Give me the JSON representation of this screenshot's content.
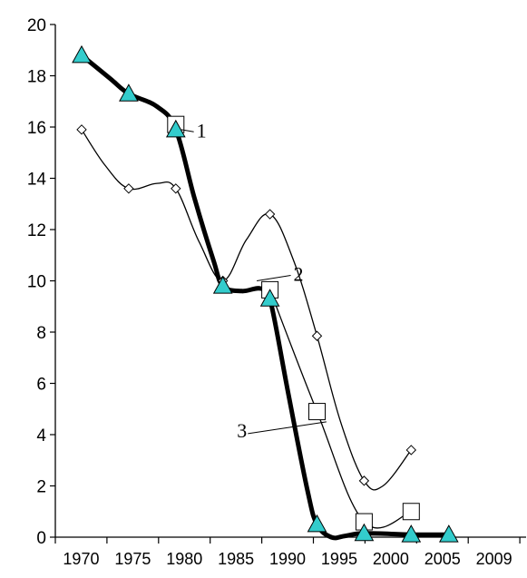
{
  "chart_data": {
    "type": "line",
    "title": "",
    "xlabel": "",
    "ylabel": "",
    "ylim": [
      0,
      20
    ],
    "y_ticks": [
      0,
      2,
      4,
      6,
      8,
      10,
      12,
      14,
      16,
      18,
      20
    ],
    "x_tick_labels": [
      "1970",
      "1975",
      "1980",
      "1985",
      "1990",
      "1995",
      "2000",
      "2005",
      "2009"
    ],
    "grid": false,
    "legend": "none",
    "series": [
      {
        "label": "1",
        "marker": "triangle",
        "color": "#000000",
        "marker_fill": "#33cccc",
        "line_weight": "thick",
        "points": [
          {
            "x": 1970,
            "y": 18.8
          },
          {
            "x": 1975,
            "y": 17.3
          },
          {
            "x": 1980,
            "y": 15.9
          },
          {
            "x": 1985,
            "y": 9.8
          },
          {
            "x": 1990,
            "y": 9.3
          },
          {
            "x": 1995,
            "y": 0.5
          },
          {
            "x": 2000,
            "y": 0.15
          },
          {
            "x": 2005,
            "y": 0.1
          },
          {
            "x": 2009,
            "y": 0.1
          }
        ],
        "curve_points": [
          {
            "x": 1970,
            "y": 18.8
          },
          {
            "x": 1973,
            "y": 17.9
          },
          {
            "x": 1975,
            "y": 17.3
          },
          {
            "x": 1978,
            "y": 16.8
          },
          {
            "x": 1980,
            "y": 15.9
          },
          {
            "x": 1982,
            "y": 13.2
          },
          {
            "x": 1984,
            "y": 10.8
          },
          {
            "x": 1985,
            "y": 9.8
          },
          {
            "x": 1987,
            "y": 9.6
          },
          {
            "x": 1989,
            "y": 9.7
          },
          {
            "x": 1990,
            "y": 9.3
          },
          {
            "x": 1992,
            "y": 5.5
          },
          {
            "x": 1994,
            "y": 1.8
          },
          {
            "x": 1995,
            "y": 0.5
          },
          {
            "x": 1996.5,
            "y": 0.0
          },
          {
            "x": 1998,
            "y": 0.05
          },
          {
            "x": 2000,
            "y": 0.15
          },
          {
            "x": 2005,
            "y": 0.1
          },
          {
            "x": 2009,
            "y": 0.1
          }
        ]
      },
      {
        "label": "2",
        "marker": "diamond",
        "color": "#000000",
        "marker_fill": "#ffffff",
        "line_weight": "thin",
        "points": [
          {
            "x": 1970,
            "y": 15.9
          },
          {
            "x": 1975,
            "y": 13.6
          },
          {
            "x": 1980,
            "y": 13.6
          },
          {
            "x": 1985,
            "y": 10.0
          },
          {
            "x": 1990,
            "y": 12.6
          },
          {
            "x": 1995,
            "y": 7.85
          },
          {
            "x": 2000,
            "y": 2.2
          },
          {
            "x": 2005,
            "y": 3.4
          }
        ],
        "curve_points": [
          {
            "x": 1970,
            "y": 15.9
          },
          {
            "x": 1972.5,
            "y": 14.5
          },
          {
            "x": 1975,
            "y": 13.6
          },
          {
            "x": 1978,
            "y": 13.8
          },
          {
            "x": 1980,
            "y": 13.6
          },
          {
            "x": 1982.5,
            "y": 11.5
          },
          {
            "x": 1985,
            "y": 10.0
          },
          {
            "x": 1987.5,
            "y": 11.6
          },
          {
            "x": 1990,
            "y": 12.6
          },
          {
            "x": 1992.5,
            "y": 10.8
          },
          {
            "x": 1995,
            "y": 7.85
          },
          {
            "x": 1997.5,
            "y": 4.5
          },
          {
            "x": 2000,
            "y": 2.2
          },
          {
            "x": 2002,
            "y": 2.0
          },
          {
            "x": 2005,
            "y": 3.4
          }
        ]
      },
      {
        "label": "3",
        "marker": "square",
        "color": "#000000",
        "marker_fill": "#ffffff",
        "line_weight": "thin",
        "points": [
          {
            "x": 1980,
            "y": 16.1
          },
          {
            "x": 1990,
            "y": 9.65
          },
          {
            "x": 1995,
            "y": 4.9
          },
          {
            "x": 2000,
            "y": 0.6
          },
          {
            "x": 2005,
            "y": 1.0
          }
        ],
        "curve_points": [
          {
            "x": 1990,
            "y": 9.65
          },
          {
            "x": 1995,
            "y": 4.9
          },
          {
            "x": 2000,
            "y": 0.6
          },
          {
            "x": 2005,
            "y": 1.0
          }
        ]
      }
    ],
    "annotations": [
      {
        "text": "1",
        "series": "1",
        "label_at": {
          "x": 1982.2,
          "y": 15.6
        },
        "points_to": {
          "x": 1980.6,
          "y": 15.9
        }
      },
      {
        "text": "2",
        "series": "2",
        "label_at": {
          "x": 1992.5,
          "y": 10.0
        },
        "points_to": {
          "x": 1988.6,
          "y": 10.0
        }
      },
      {
        "text": "3",
        "series": "3",
        "label_at": {
          "x": 1986.5,
          "y": 3.9
        },
        "points_to": {
          "x": 1996.0,
          "y": 4.5
        }
      }
    ]
  }
}
